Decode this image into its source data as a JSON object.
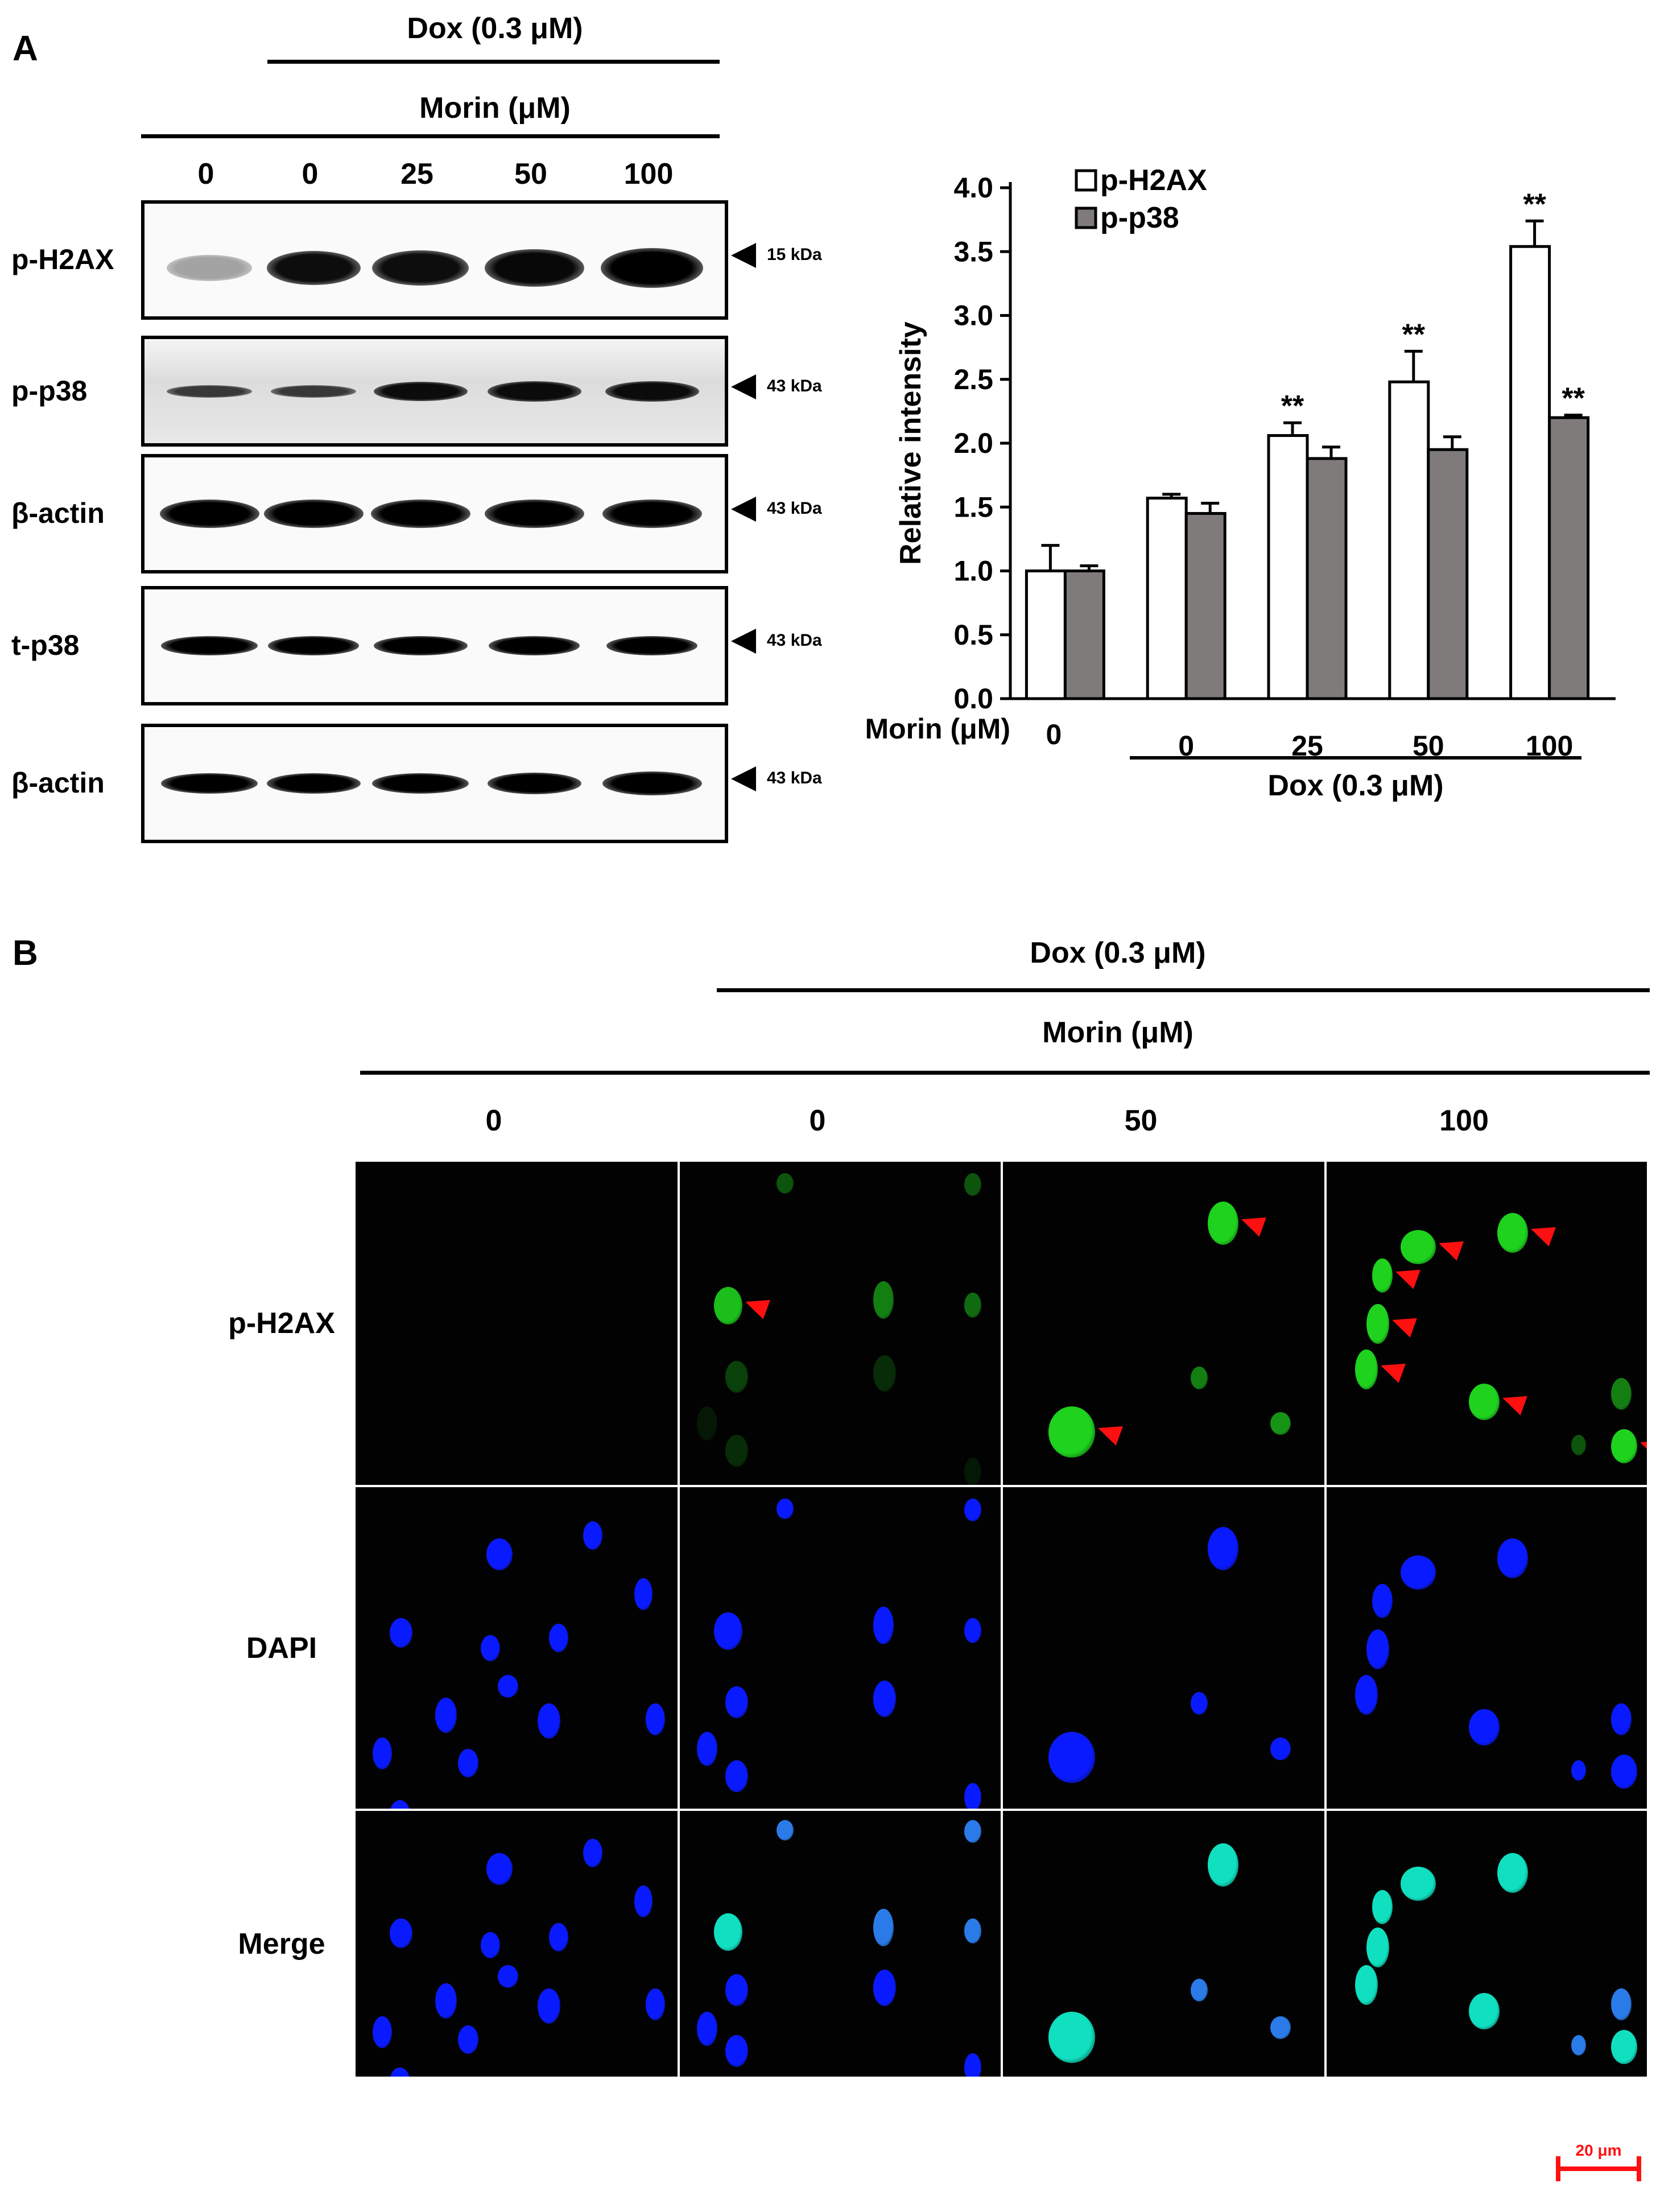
{
  "panel_a": {
    "label": "A",
    "treatment": "Dox (0.3 μM)",
    "dose_header": "Morin (μM)",
    "lanes": [
      "0",
      "0",
      "25",
      "50",
      "100"
    ],
    "blots": [
      {
        "protein": "p-H2AX",
        "marker": "15 kDa"
      },
      {
        "protein": "p-p38",
        "marker": "43 kDa"
      },
      {
        "protein": "β-actin",
        "marker": "43 kDa"
      },
      {
        "protein": "t-p38",
        "marker": "43 kDa"
      },
      {
        "protein": "β-actin",
        "marker": "43 kDa"
      }
    ]
  },
  "chart_data": {
    "type": "bar",
    "ylabel": "Relative intensity",
    "ylim": [
      0,
      4.0
    ],
    "yticks": [
      "0.0",
      "0.5",
      "1.0",
      "1.5",
      "2.0",
      "2.5",
      "3.0",
      "3.5",
      "4.0"
    ],
    "xlabel_prefix": "Morin (μM)",
    "categories": [
      "0",
      "0",
      "25",
      "50",
      "100"
    ],
    "group_label": "Dox (0.3 μM)",
    "legend_position": "top-left",
    "series": [
      {
        "name": "p-H2AX",
        "color": "#ffffff",
        "values": [
          1.0,
          1.57,
          2.06,
          2.48,
          3.54
        ],
        "errors": [
          0.2,
          0.03,
          0.1,
          0.24,
          0.2
        ],
        "sig": [
          "",
          "",
          "**",
          "**",
          "**"
        ]
      },
      {
        "name": "p-p38",
        "color": "#7f7b7b",
        "values": [
          1.0,
          1.45,
          1.88,
          1.95,
          2.2
        ],
        "errors": [
          0.04,
          0.08,
          0.09,
          0.1,
          0.02
        ],
        "sig": [
          "",
          "",
          "",
          "",
          "**"
        ]
      }
    ]
  },
  "panel_b": {
    "label": "B",
    "treatment": "Dox (0.3 μM)",
    "dose_header": "Morin (μM)",
    "columns": [
      "0",
      "0",
      "50",
      "100"
    ],
    "rows": [
      "p-H2AX",
      "DAPI",
      "Merge"
    ],
    "scale_bar": "20 μm",
    "colors": {
      "green": "#1ed21e",
      "blue": "#0a1aff",
      "cyan": "#10e0c0",
      "arrow": "#ff1010"
    }
  }
}
